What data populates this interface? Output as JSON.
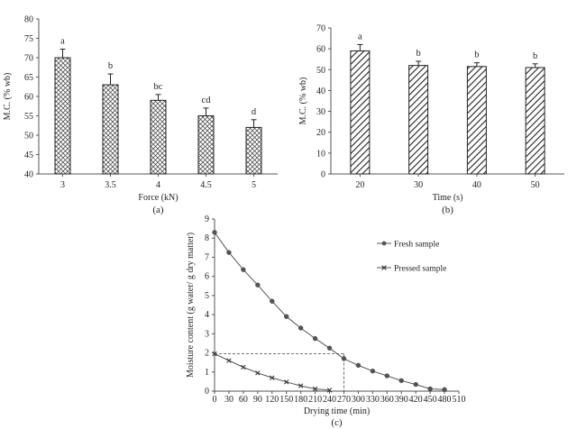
{
  "chart_data": [
    {
      "panel": "(a)",
      "type": "bar",
      "xlabel": "Force (kN)",
      "ylabel": "M.C. (% wb)",
      "ylim": [
        40,
        80
      ],
      "yticks": [
        40,
        45,
        50,
        55,
        60,
        65,
        70,
        75,
        80
      ],
      "categories": [
        "3",
        "3.5",
        "4",
        "4.5",
        "5"
      ],
      "values": [
        70,
        63,
        59,
        55,
        52
      ],
      "errors": [
        2.2,
        2.8,
        1.5,
        2.0,
        2.0
      ],
      "letters": [
        "a",
        "b",
        "bc",
        "cd",
        "d"
      ],
      "pattern": "crosshatch"
    },
    {
      "panel": "(b)",
      "type": "bar",
      "xlabel": "Time (s)",
      "ylabel": "M.C. (% wb)",
      "ylim": [
        0,
        70
      ],
      "yticks": [
        0,
        10,
        20,
        30,
        40,
        50,
        60,
        70
      ],
      "categories": [
        "20",
        "30",
        "40",
        "50"
      ],
      "values": [
        59,
        52,
        51.5,
        51
      ],
      "errors": [
        3.0,
        2.0,
        1.8,
        1.8
      ],
      "letters": [
        "a",
        "b",
        "b",
        "b"
      ],
      "pattern": "diagonal"
    },
    {
      "panel": "(c)",
      "type": "line",
      "xlabel": "Drying time (min)",
      "ylabel": "Moisture content (g water/ g dry matter)",
      "xlim": [
        0,
        510
      ],
      "ylim": [
        0,
        9
      ],
      "xticks": [
        0,
        30,
        60,
        90,
        120,
        150,
        180,
        210,
        240,
        270,
        300,
        330,
        360,
        390,
        420,
        450,
        480,
        510
      ],
      "yticks": [
        0,
        1,
        2,
        3,
        4,
        5,
        6,
        7,
        8,
        9
      ],
      "series": [
        {
          "name": "Fresh sample",
          "marker": "circle",
          "x": [
            0,
            30,
            60,
            90,
            120,
            150,
            180,
            210,
            240,
            270,
            300,
            330,
            360,
            390,
            420,
            450,
            480
          ],
          "y": [
            8.3,
            7.25,
            6.35,
            5.55,
            4.7,
            3.9,
            3.3,
            2.75,
            2.25,
            1.7,
            1.35,
            1.05,
            0.8,
            0.55,
            0.35,
            0.12,
            0.08
          ]
        },
        {
          "name": "Pressed sample",
          "marker": "x",
          "x": [
            0,
            30,
            60,
            90,
            120,
            150,
            180,
            210,
            240
          ],
          "y": [
            1.95,
            1.6,
            1.25,
            0.95,
            0.7,
            0.48,
            0.28,
            0.12,
            0.05
          ]
        }
      ],
      "reference_lines": {
        "x": 270,
        "y": 1.95
      }
    }
  ]
}
